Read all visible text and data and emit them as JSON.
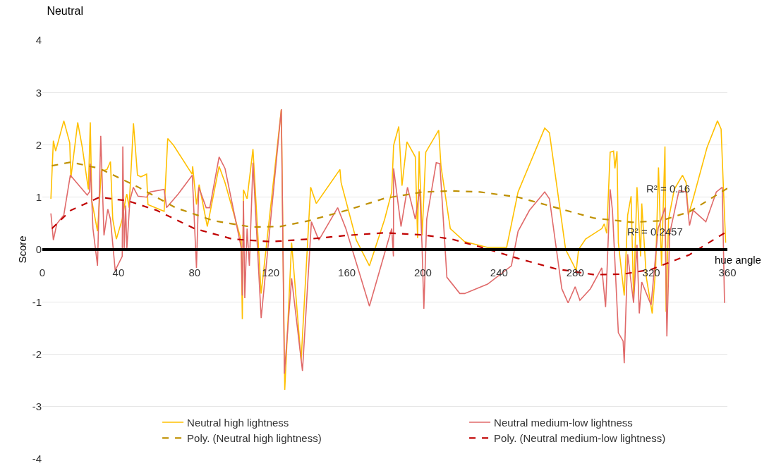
{
  "chart_data": {
    "type": "line",
    "title": "Neutral",
    "xlabel": "hue angle",
    "ylabel": "Score",
    "xlim": [
      0,
      360
    ],
    "xticks": [
      0,
      40,
      80,
      120,
      160,
      200,
      240,
      280,
      320,
      360
    ],
    "ylim": [
      -4,
      4
    ],
    "yticks": [
      -4,
      -3,
      -2,
      -1,
      0,
      1,
      2,
      3,
      4
    ],
    "grid": "y",
    "legend": "bottom",
    "annotations": [
      "R² = 0.16",
      "R² = 0.2457"
    ],
    "series": [
      {
        "name": "Neutral high lightness",
        "color": "#FFC000",
        "line_style": "solid",
        "x": [
          4.5,
          5.8,
          7,
          11.3,
          14.4,
          15,
          18.6,
          21,
          24.2,
          25.2,
          26,
          29,
          31,
          34,
          35.8,
          37,
          38.9,
          42,
          43.8,
          44.4,
          45.6,
          47.9,
          50,
          51.8,
          54.8,
          55.5,
          64,
          65.9,
          69,
          78.7,
          79,
          81,
          82.4,
          86.7,
          92.9,
          96,
          104.5,
          105.1,
          105.7,
          107.6,
          110.7,
          115,
          125.6,
          127.4,
          131,
          136,
          141,
          144,
          156.4,
          157,
          165,
          171.9,
          179.9,
          183.6,
          184.6,
          187.3,
          189,
          191.6,
          196,
          197.2,
          198,
          199.6,
          201.5,
          208.3,
          209.5,
          214.4,
          221.9,
          234,
          244,
          250,
          264,
          266.5,
          275,
          280.6,
          281.8,
          285.5,
          294,
          295.3,
          296.6,
          298.4,
          300.2,
          300.9,
          302,
          302.7,
          305.8,
          307.6,
          309.4,
          310.7,
          312.5,
          314.4,
          315,
          317.4,
          320.5,
          322.3,
          323.8,
          325.4,
          327.2,
          327.8,
          329.1,
          332.1,
          336.4,
          338.3,
          339.5,
          342,
          349.3,
          354.8,
          356.7,
          357.9,
          359.1
        ],
        "values": [
          0.97,
          2.08,
          1.88,
          2.46,
          2.04,
          1.37,
          2.43,
          1.95,
          1.15,
          2.43,
          0.93,
          0.35,
          1.5,
          1.53,
          1.68,
          0.58,
          0.2,
          0.58,
          0.97,
          1.06,
          0.8,
          2.41,
          1.42,
          1.39,
          1.44,
          0.86,
          0.73,
          2.12,
          1.99,
          1.44,
          1.59,
          0.86,
          1.24,
          0.44,
          1.59,
          1.28,
          0.18,
          -1.33,
          1.14,
          0.97,
          1.92,
          -0.84,
          2.68,
          -2.68,
          0.13,
          -2.12,
          1.19,
          0.88,
          1.53,
          1.28,
          0.18,
          -0.31,
          0.58,
          1.1,
          1.99,
          2.35,
          1.22,
          2.06,
          1.77,
          0.22,
          1.88,
          0.27,
          1.86,
          2.28,
          1.59,
          0.4,
          0.15,
          0.04,
          0.04,
          1.1,
          2.32,
          2.23,
          0,
          -0.4,
          0,
          0.2,
          0.4,
          0.49,
          0.31,
          1.86,
          1.88,
          1.55,
          1.88,
          0.13,
          -0.88,
          0.66,
          1.02,
          -0.93,
          1.19,
          -0.13,
          0.88,
          -0.53,
          -1.22,
          -0.35,
          1.57,
          -0.31,
          1.97,
          -1.19,
          0.58,
          1.15,
          1.42,
          1.28,
          0.66,
          0.97,
          1.95,
          2.46,
          2.3,
          1.19,
          0.13
        ]
      },
      {
        "name": "Neutral medium-low lightness",
        "color": "#E06A6A",
        "line_style": "solid",
        "x": [
          4.5,
          5.8,
          7.6,
          11.3,
          14.7,
          23.6,
          24.8,
          25.2,
          26.6,
          29,
          30.7,
          32.4,
          34.4,
          35.8,
          38.3,
          42,
          42.3,
          43,
          43.8,
          44.4,
          46,
          47.8,
          50.3,
          54.8,
          56.7,
          64,
          65.3,
          71.4,
          78.8,
          81,
          82.2,
          86.1,
          88,
          92.9,
          96,
          104.5,
          105.1,
          105.7,
          106.4,
          107.6,
          108.8,
          110.7,
          115,
          125.6,
          127.2,
          131,
          136.7,
          141.4,
          145.3,
          155.2,
          159.5,
          171.9,
          183.6,
          184.5,
          184.6,
          188.5,
          191.9,
          196,
          198.3,
          199.5,
          200.5,
          202,
          207,
          208.9,
          212.6,
          219.4,
          221.9,
          234,
          246.5,
          250,
          256,
          264,
          266.5,
          273,
          276.3,
          280,
          282.5,
          288,
          294,
          296,
          298.4,
          299.6,
          302.7,
          305.2,
          305.8,
          307.6,
          310.7,
          312.5,
          313.7,
          315,
          319.9,
          323.6,
          327.2,
          328.2,
          329.7,
          334.6,
          338.3,
          340.1,
          342,
          348.7,
          354.2,
          357.3,
          358.5
        ],
        "values": [
          0.69,
          0.18,
          0.49,
          0.66,
          1.42,
          1.04,
          1.1,
          1.64,
          0.4,
          -0.31,
          2.17,
          0.27,
          0.77,
          0.58,
          -0.4,
          -0.13,
          1.97,
          0,
          0.84,
          0,
          0.93,
          1.19,
          1.02,
          1.0,
          1.1,
          1.15,
          0.8,
          1.06,
          1.42,
          -0.35,
          1.19,
          0.8,
          0.8,
          1.77,
          1.55,
          0.04,
          -0.88,
          0.93,
          -0.93,
          0.4,
          -0.31,
          1.66,
          -1.31,
          2.68,
          -2.37,
          -0.55,
          -2.32,
          0.53,
          0.18,
          0.8,
          0.4,
          -1.08,
          0.4,
          -0.13,
          1.55,
          0.44,
          1.19,
          0.58,
          1.15,
          0.11,
          -1.13,
          0.58,
          1.66,
          1.64,
          -0.53,
          -0.84,
          -0.84,
          -0.66,
          -0.31,
          0.35,
          0.75,
          1.1,
          0.97,
          -0.75,
          -1.02,
          -0.71,
          -0.97,
          -0.75,
          -0.35,
          -1.1,
          1.15,
          0.75,
          -1.59,
          -1.75,
          -2.17,
          -0.09,
          -1.02,
          0.09,
          -1.22,
          -0.62,
          -1.06,
          0.4,
          0.8,
          -1.66,
          0.31,
          1.13,
          1.1,
          0.46,
          0.75,
          0.53,
          1.1,
          1.19,
          -1.02
        ]
      },
      {
        "name": "Poly. (Neutral high lightness)",
        "color": "#BF9000",
        "line_style": "dashed",
        "x": [
          5,
          15,
          30,
          50,
          70,
          90,
          110,
          125,
          140,
          160,
          180,
          200,
          215,
          230,
          250,
          270,
          290,
          310,
          325,
          340,
          360
        ],
        "values": [
          1.6,
          1.67,
          1.55,
          1.2,
          0.8,
          0.55,
          0.43,
          0.44,
          0.55,
          0.75,
          0.98,
          1.1,
          1.12,
          1.1,
          1.0,
          0.8,
          0.6,
          0.52,
          0.55,
          0.72,
          1.17
        ]
      },
      {
        "name": "Poly. (Neutral medium-low lightness)",
        "color": "#C00000",
        "line_style": "dashed",
        "x": [
          5,
          15,
          30,
          45,
          60,
          80,
          100,
          120,
          140,
          160,
          180,
          200,
          215,
          230,
          250,
          270,
          290,
          305,
          320,
          340,
          360
        ],
        "values": [
          0.4,
          0.75,
          1.0,
          0.93,
          0.75,
          0.4,
          0.2,
          0.15,
          0.2,
          0.27,
          0.32,
          0.28,
          0.2,
          0.05,
          -0.17,
          -0.37,
          -0.48,
          -0.47,
          -0.38,
          -0.1,
          0.35
        ]
      }
    ]
  }
}
